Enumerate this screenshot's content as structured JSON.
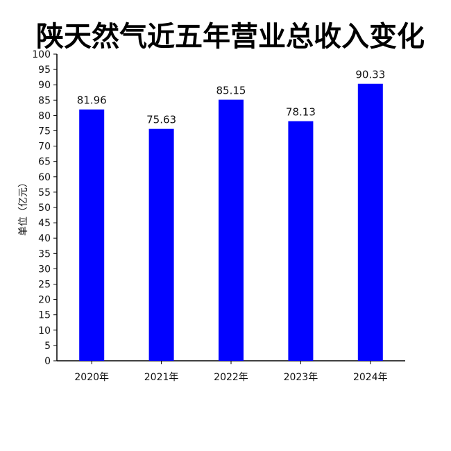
{
  "chart_data": {
    "type": "bar",
    "title": "陕天然气近五年营业总收入变化",
    "ylabel": "单位（亿元）",
    "xlabel": "",
    "categories": [
      "2020年",
      "2021年",
      "2022年",
      "2023年",
      "2024年"
    ],
    "values": [
      81.96,
      75.63,
      85.15,
      78.13,
      90.33
    ],
    "value_labels": [
      "81.96",
      "75.63",
      "85.15",
      "78.13",
      "90.33"
    ],
    "ylim": [
      0,
      100
    ],
    "ytick_step": 5,
    "ytick_labels": [
      "0",
      "5",
      "10",
      "15",
      "20",
      "25",
      "30",
      "35",
      "40",
      "45",
      "50",
      "55",
      "60",
      "65",
      "70",
      "75",
      "80",
      "85",
      "90",
      "95",
      "100"
    ],
    "bar_color": "#0000ff",
    "grid": false,
    "legend": "none"
  }
}
